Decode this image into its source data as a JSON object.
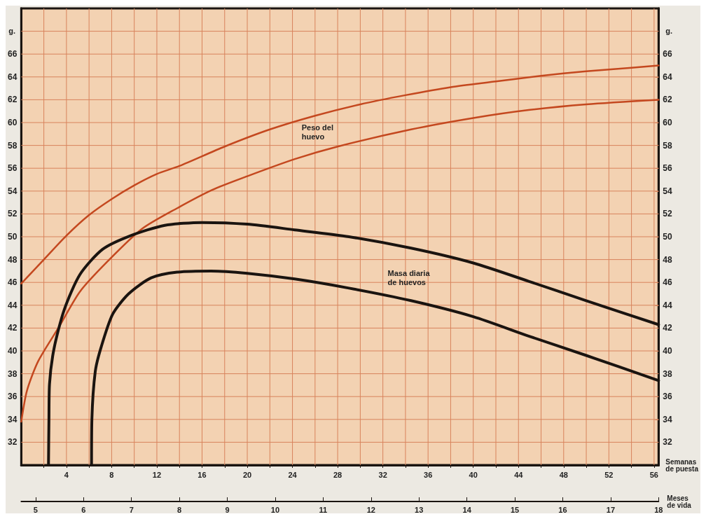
{
  "chart_data": {
    "type": "line",
    "xlabel": "Semanas\nde puesta",
    "x2label": "Meses\nde vida",
    "ylabel": "g.",
    "y2label": "g.",
    "xlim": [
      0,
      56.4
    ],
    "xticks": [
      {
        "value": 2,
        "label": null
      },
      4,
      {
        "value": 6,
        "label": null
      },
      8,
      {
        "value": 10,
        "label": null
      },
      12,
      {
        "value": 14,
        "label": null
      },
      16,
      {
        "value": 18,
        "label": null
      },
      20,
      {
        "value": 22,
        "label": null
      },
      24,
      {
        "value": 26,
        "label": null
      },
      28,
      {
        "value": 30,
        "label": null
      },
      32,
      {
        "value": 34,
        "label": null
      },
      36,
      {
        "value": 38,
        "label": null
      },
      40,
      {
        "value": 42,
        "label": null
      },
      44,
      {
        "value": 46,
        "label": null
      },
      48,
      {
        "value": 50,
        "label": null
      },
      52,
      {
        "value": 54,
        "label": null
      },
      56
    ],
    "x2lim": [
      4.7,
      18
    ],
    "x2ticks": [
      5,
      6,
      7,
      8,
      9,
      10,
      11,
      12,
      13,
      14,
      15,
      16,
      17,
      18
    ],
    "ylim": [
      30,
      70
    ],
    "yticks": [
      32,
      34,
      36,
      38,
      40,
      42,
      44,
      46,
      48,
      50,
      52,
      54,
      56,
      58,
      60,
      62,
      64,
      66,
      {
        "value": 68,
        "label": null
      }
    ],
    "y2lim": [
      30,
      70
    ],
    "y2ticks": [
      32,
      34,
      36,
      38,
      40,
      42,
      44,
      46,
      48,
      50,
      52,
      54,
      56,
      58,
      60,
      62,
      64,
      66,
      {
        "value": 68,
        "label": null
      }
    ],
    "grid": true,
    "marker": "none",
    "line_style": "solid",
    "series": [
      {
        "color": "#c4481f",
        "x": [
          0,
          2,
          4,
          6,
          8,
          10,
          12,
          14,
          18,
          22,
          26,
          30,
          34,
          38,
          42,
          46,
          50,
          54,
          56.4
        ],
        "values": [
          45.9,
          48.0,
          50.1,
          51.9,
          53.3,
          54.5,
          55.5,
          56.2,
          57.9,
          59.4,
          60.6,
          61.6,
          62.4,
          63.1,
          63.6,
          64.1,
          64.5,
          64.8,
          65.0
        ]
      },
      {
        "color": "#c4481f",
        "x": [
          0,
          0.5,
          1.5,
          3.4,
          5.2,
          7.7,
          10.7,
          13.8,
          16.9,
          20,
          24.2,
          28,
          34.5,
          40,
          44.9,
          50,
          56.4
        ],
        "values": [
          33.8,
          36.5,
          39.1,
          42.2,
          45.2,
          47.9,
          50.7,
          52.5,
          54.1,
          55.3,
          56.8,
          57.9,
          59.4,
          60.4,
          61.1,
          61.6,
          62.0
        ]
      },
      {
        "color": "#1a1410",
        "x": [
          2.41,
          2.45,
          2.5,
          2.9,
          3.8,
          5.2,
          7.2,
          9.7,
          12.7,
          16,
          20,
          24.2,
          29,
          34.5,
          40,
          44.9,
          50,
          56.4
        ],
        "values": [
          30,
          34,
          37.1,
          40.2,
          43.6,
          46.7,
          48.9,
          50.1,
          51.0,
          51.25,
          51.1,
          50.6,
          50.0,
          49.0,
          47.7,
          46.1,
          44.4,
          42.3
        ]
      },
      {
        "color": "#1a1410",
        "x": [
          6.22,
          6.25,
          6.55,
          7.06,
          8.08,
          9.5,
          11.5,
          13.8,
          16.8,
          20,
          24.2,
          29,
          34.5,
          40,
          44.9,
          50,
          56.4
        ],
        "values": [
          30,
          34,
          38.2,
          40.3,
          43.2,
          45.0,
          46.4,
          46.9,
          47.0,
          46.8,
          46.3,
          45.5,
          44.4,
          43.0,
          41.3,
          39.6,
          37.4
        ]
      }
    ],
    "annotations": [
      "Peso del\nhuevo",
      "Masa diaria\nde huevos"
    ]
  }
}
